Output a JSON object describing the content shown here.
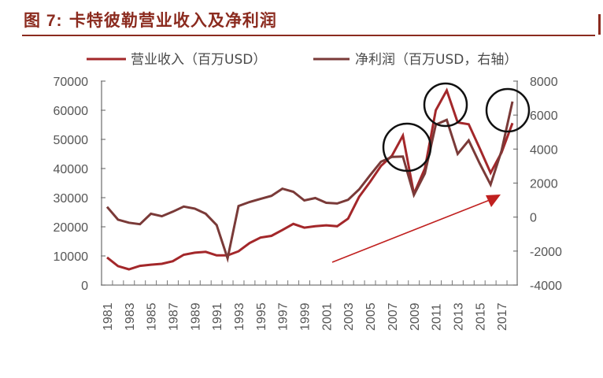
{
  "header": {
    "figure_label": "图 7:",
    "title": "卡特彼勒营业收入及净利润"
  },
  "legend": [
    {
      "label": "营业收入（百万USD）",
      "color": "#a3272a"
    },
    {
      "label": "净利润（百万USD，右轴）",
      "color": "#7a3a38"
    }
  ],
  "chart_data": {
    "type": "line",
    "title": "卡特彼勒营业收入及净利润",
    "xlabel": "",
    "ylabel": "",
    "x": [
      1981,
      1982,
      1983,
      1984,
      1985,
      1986,
      1987,
      1988,
      1989,
      1990,
      1991,
      1992,
      1993,
      1994,
      1995,
      1996,
      1997,
      1998,
      1999,
      2000,
      2001,
      2002,
      2003,
      2004,
      2005,
      2006,
      2007,
      2008,
      2009,
      2010,
      2011,
      2012,
      2013,
      2014,
      2015,
      2016,
      2017,
      2018
    ],
    "x_tick_labels": [
      "1981",
      "1983",
      "1985",
      "1987",
      "1989",
      "1991",
      "1993",
      "1995",
      "1997",
      "1999",
      "2001",
      "2003",
      "2005",
      "2007",
      "2009",
      "2011",
      "2013",
      "2015",
      "2017"
    ],
    "series": [
      {
        "name": "营业收入（百万USD）",
        "axis": "left",
        "color": "#a3272a",
        "values": [
          9500,
          6500,
          5400,
          6600,
          7000,
          7300,
          8200,
          10400,
          11100,
          11400,
          10200,
          10200,
          11600,
          14400,
          16300,
          16900,
          18900,
          21000,
          19700,
          20200,
          20500,
          20200,
          22800,
          30300,
          35400,
          40900,
          44400,
          51300,
          31300,
          40000,
          60000,
          66800,
          55800,
          55200,
          47000,
          38500,
          45500,
          55600
        ]
      },
      {
        "name": "净利润（百万USD，右轴）",
        "axis": "right",
        "color": "#7a3a38",
        "values": [
          600,
          -150,
          -330,
          -420,
          200,
          50,
          320,
          620,
          500,
          200,
          -470,
          -2430,
          650,
          890,
          1070,
          1250,
          1670,
          1490,
          980,
          1120,
          840,
          800,
          1020,
          1630,
          2460,
          3260,
          3540,
          3560,
          1300,
          2560,
          5440,
          5720,
          3720,
          4510,
          3160,
          1910,
          3900,
          6800
        ]
      }
    ],
    "y_left": {
      "ylim": [
        0,
        70000
      ],
      "ticks": [
        "0",
        "10000",
        "20000",
        "30000",
        "40000",
        "50000",
        "60000",
        "70000"
      ]
    },
    "y_right": {
      "ylim": [
        -4000,
        8000
      ],
      "ticks": [
        "-4000",
        "-2000",
        "0",
        "2000",
        "4000",
        "6000",
        "8000"
      ]
    },
    "grid": false,
    "legend_position": "top",
    "annotations": [
      {
        "type": "circle",
        "year": 2008
      },
      {
        "type": "circle",
        "year": 2012
      },
      {
        "type": "circle",
        "year": 2018
      },
      {
        "type": "arrow",
        "description": "upward trend arrow from ~2002 to ~2017",
        "color": "#c0201f"
      }
    ]
  }
}
